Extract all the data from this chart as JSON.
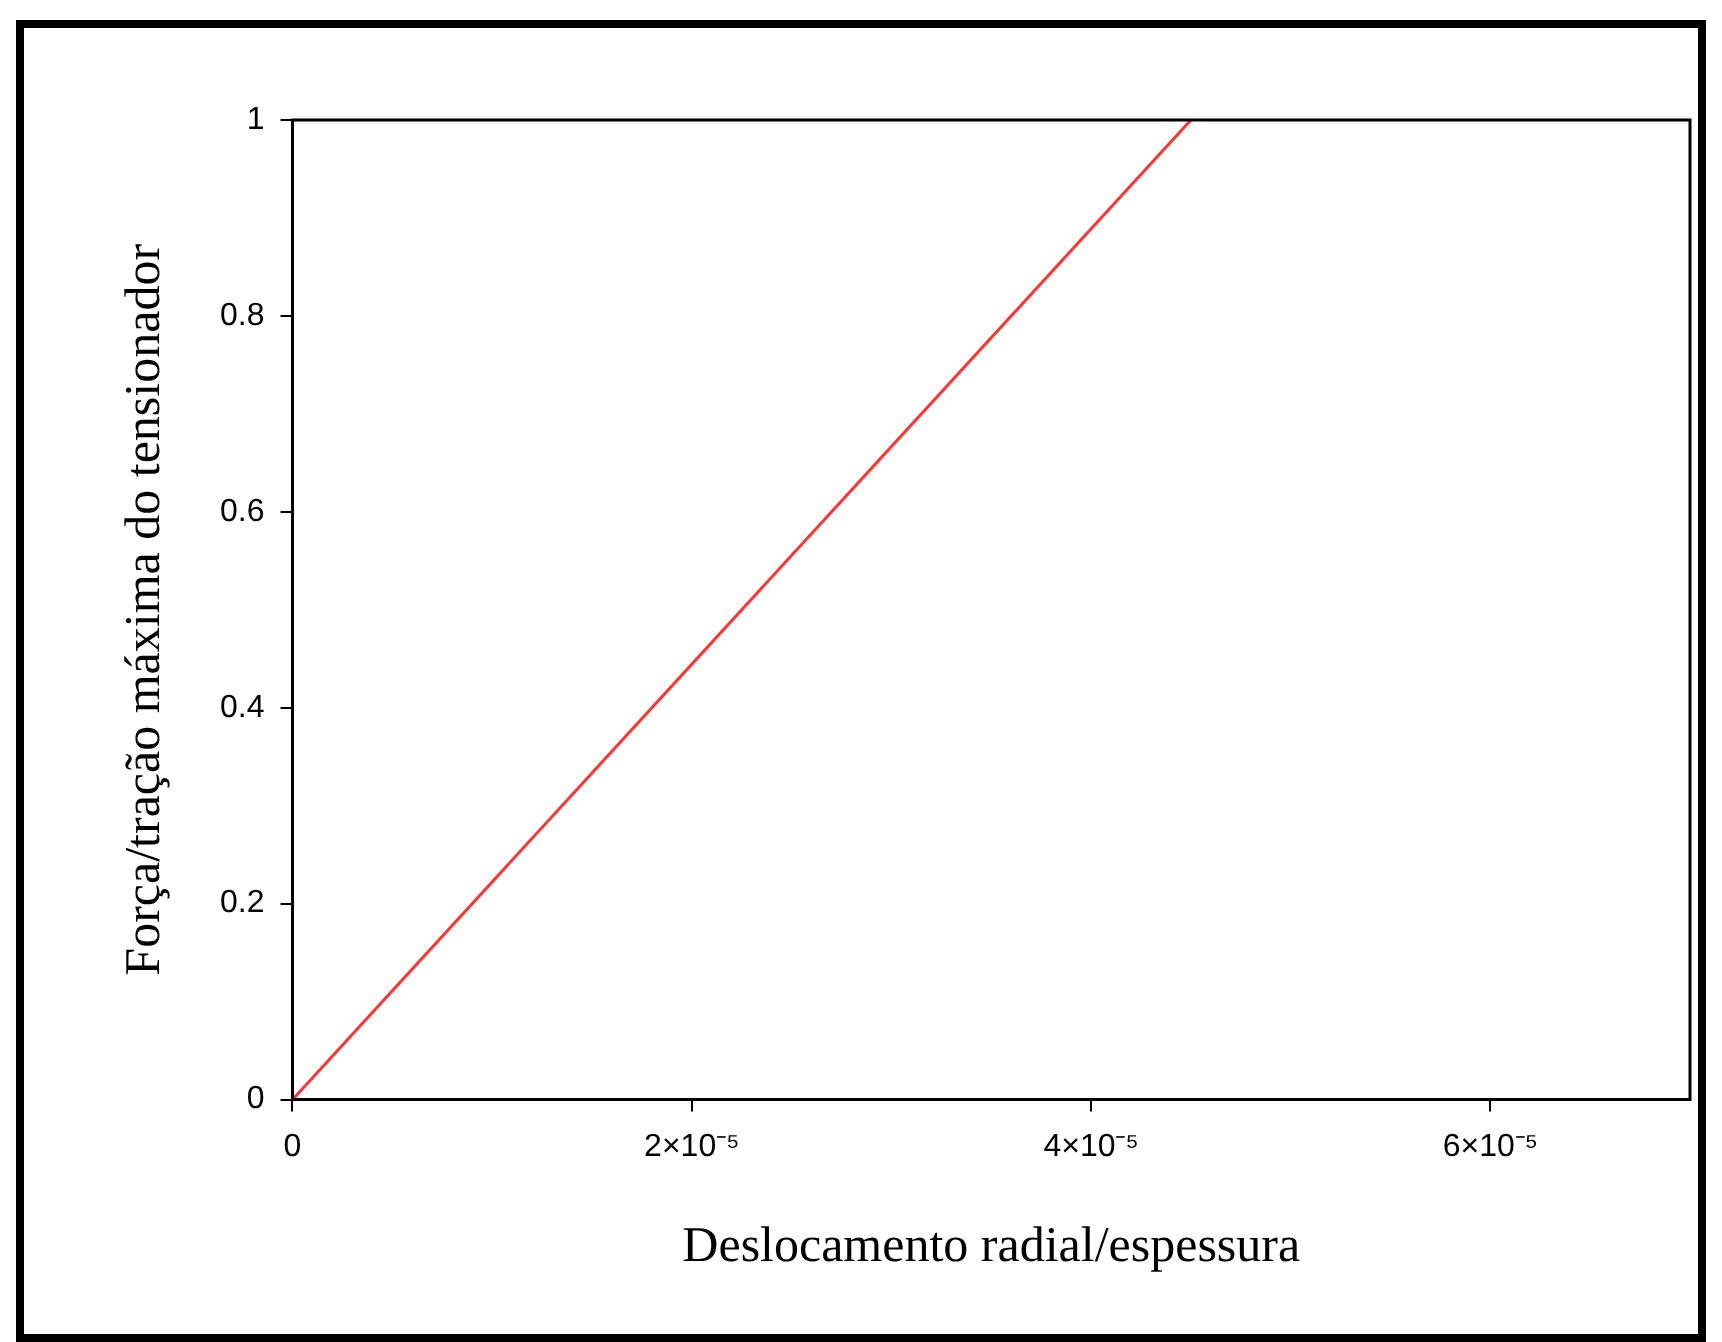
{
  "chart_data": {
    "type": "line",
    "xlabel": "Deslocamento radial/espessura",
    "ylabel": "Força/tração máxima do tensionador",
    "x": [
      0,
      4.5e-05
    ],
    "series": [
      {
        "color": "#ff3333",
        "values": [
          0,
          1
        ]
      }
    ],
    "xlim": [
      0,
      7e-05
    ],
    "xticks": [
      0,
      {
        "value": 2e-05,
        "label": "2×10⁻⁵"
      },
      {
        "value": 4e-05,
        "label": "4×10⁻⁵"
      },
      {
        "value": 6e-05,
        "label": "6×10⁻⁵"
      }
    ],
    "ylim": [
      0,
      1
    ],
    "yticks": [
      0,
      0.2,
      0.4,
      0.6,
      0.8,
      1
    ],
    "grid": false,
    "legend": false,
    "marker": "none",
    "line_style": "solid"
  }
}
